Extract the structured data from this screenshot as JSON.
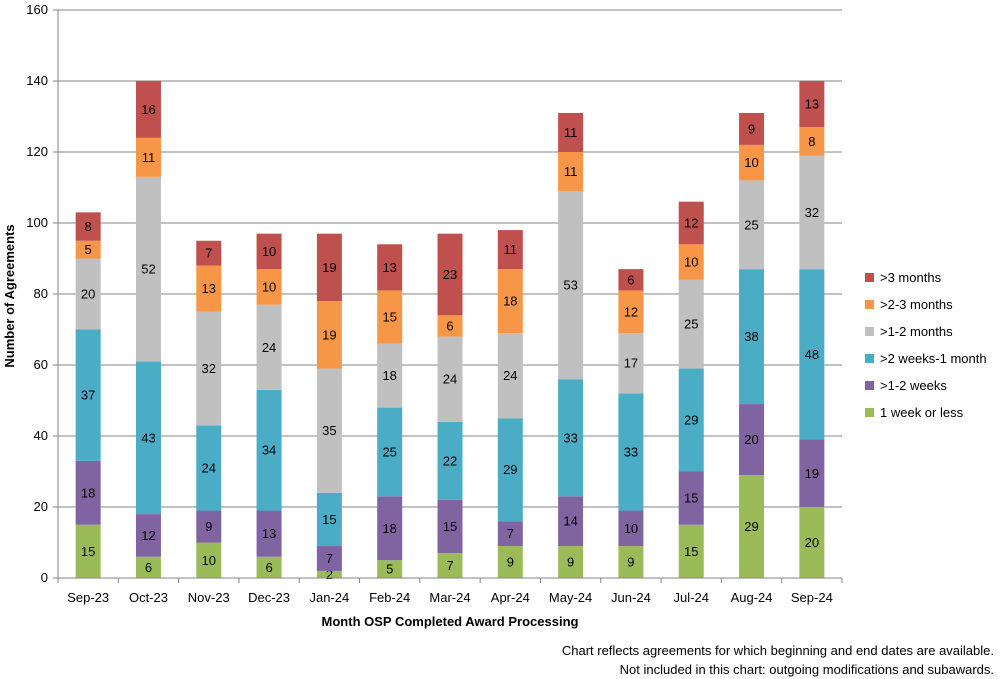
{
  "chart_data": {
    "type": "bar",
    "stacked": true,
    "title": "",
    "xlabel": "Month OSP Completed Award Processing",
    "ylabel": "Number of Agreements",
    "ylim": [
      0,
      160
    ],
    "yticks": [
      0,
      20,
      40,
      60,
      80,
      100,
      120,
      140,
      160
    ],
    "categories": [
      "Sep-23",
      "Oct-23",
      "Nov-23",
      "Dec-23",
      "Jan-24",
      "Feb-24",
      "Mar-24",
      "Apr-24",
      "May-24",
      "Jun-24",
      "Jul-24",
      "Aug-24",
      "Sep-24"
    ],
    "series": [
      {
        "name": "1 week or less",
        "color": "#9bbb59",
        "values": [
          15,
          6,
          10,
          6,
          2,
          5,
          7,
          9,
          9,
          9,
          15,
          29,
          20
        ]
      },
      {
        "name": ">1-2 weeks",
        "color": "#8064a2",
        "values": [
          18,
          12,
          9,
          13,
          7,
          18,
          15,
          7,
          14,
          10,
          15,
          20,
          19
        ]
      },
      {
        "name": ">2 weeks-1 month",
        "color": "#4bacc6",
        "values": [
          37,
          43,
          24,
          34,
          15,
          25,
          22,
          29,
          33,
          33,
          29,
          38,
          48
        ]
      },
      {
        "name": ">1-2 months",
        "color": "#c0c0c0",
        "values": [
          20,
          52,
          32,
          24,
          35,
          18,
          24,
          24,
          53,
          17,
          25,
          25,
          32
        ]
      },
      {
        "name": ">2-3 months",
        "color": "#f79646",
        "values": [
          5,
          11,
          13,
          10,
          19,
          15,
          6,
          18,
          11,
          12,
          10,
          10,
          8
        ]
      },
      {
        "name": ">3 months",
        "color": "#c0504d",
        "values": [
          8,
          16,
          7,
          10,
          19,
          13,
          23,
          11,
          11,
          6,
          12,
          9,
          13
        ]
      }
    ],
    "legend_position": "right"
  },
  "footnote": {
    "line1": "Chart reflects agreements for which beginning and end dates are available.",
    "line2": "Not included in this chart: outgoing modifications and subawards."
  }
}
